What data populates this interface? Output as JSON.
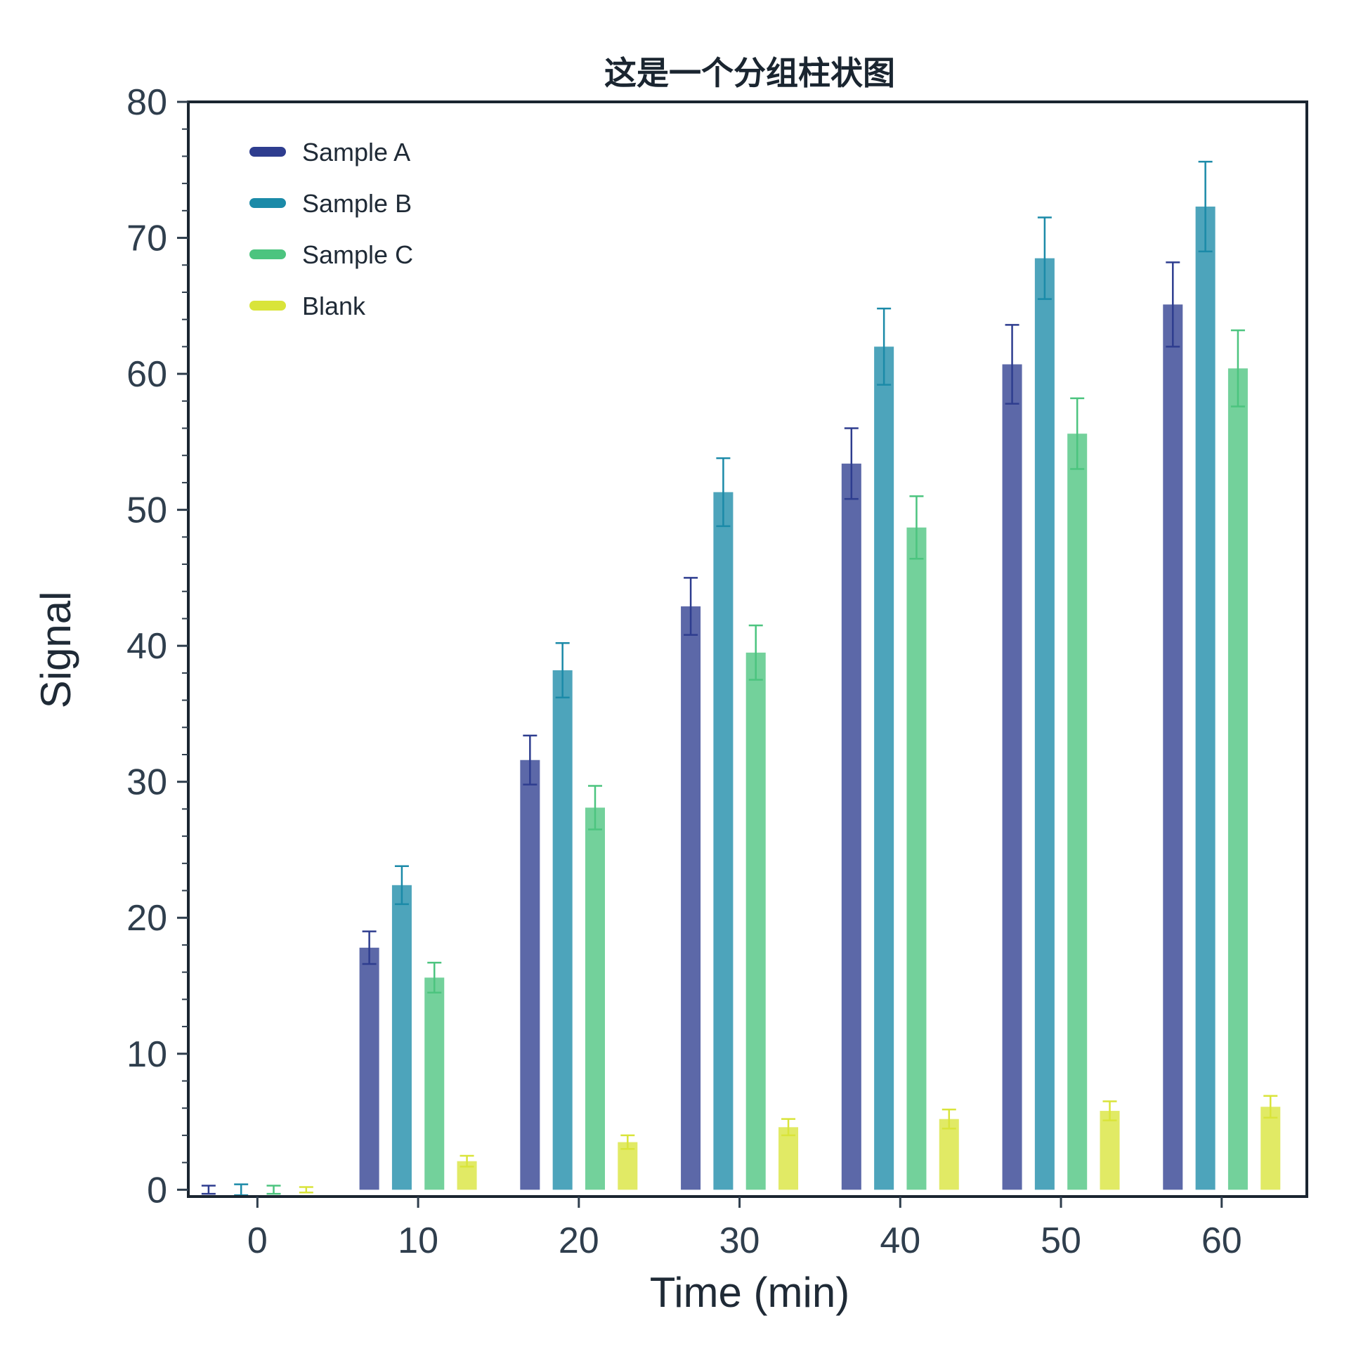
{
  "chart_data": {
    "type": "bar",
    "title": "这是一个分组柱状图",
    "xlabel": "Time (min)",
    "ylabel": "Signal",
    "categories": [
      "0",
      "10",
      "20",
      "30",
      "40",
      "50",
      "60"
    ],
    "x_values": [
      0,
      10,
      20,
      30,
      40,
      50,
      60
    ],
    "xlim": [
      -4.3,
      65.3
    ],
    "ylim": [
      -0.5,
      80
    ],
    "yticks": [
      0,
      10,
      20,
      30,
      40,
      50,
      60,
      70,
      80
    ],
    "y_minor_tick_step": 2,
    "grid": false,
    "legend_position": "top-left",
    "bar_opacity": 0.78,
    "series": [
      {
        "name": "Sample A",
        "color": "#2e3d8f",
        "values": [
          0.0,
          17.8,
          31.6,
          42.9,
          53.4,
          60.7,
          65.1
        ],
        "errors": [
          0.3,
          1.2,
          1.8,
          2.1,
          2.6,
          2.9,
          3.1
        ]
      },
      {
        "name": "Sample B",
        "color": "#1b8aa8",
        "values": [
          0.0,
          22.4,
          38.2,
          51.3,
          62.0,
          68.5,
          72.3
        ],
        "errors": [
          0.4,
          1.4,
          2.0,
          2.5,
          2.8,
          3.0,
          3.3
        ]
      },
      {
        "name": "Sample C",
        "color": "#4cc47f",
        "values": [
          0.0,
          15.6,
          28.1,
          39.5,
          48.7,
          55.6,
          60.4
        ],
        "errors": [
          0.3,
          1.1,
          1.6,
          2.0,
          2.3,
          2.6,
          2.8
        ]
      },
      {
        "name": "Blank",
        "color": "#d9e43a",
        "values": [
          0.0,
          2.1,
          3.5,
          4.6,
          5.2,
          5.8,
          6.1
        ],
        "errors": [
          0.2,
          0.4,
          0.5,
          0.6,
          0.7,
          0.7,
          0.8
        ]
      }
    ]
  }
}
